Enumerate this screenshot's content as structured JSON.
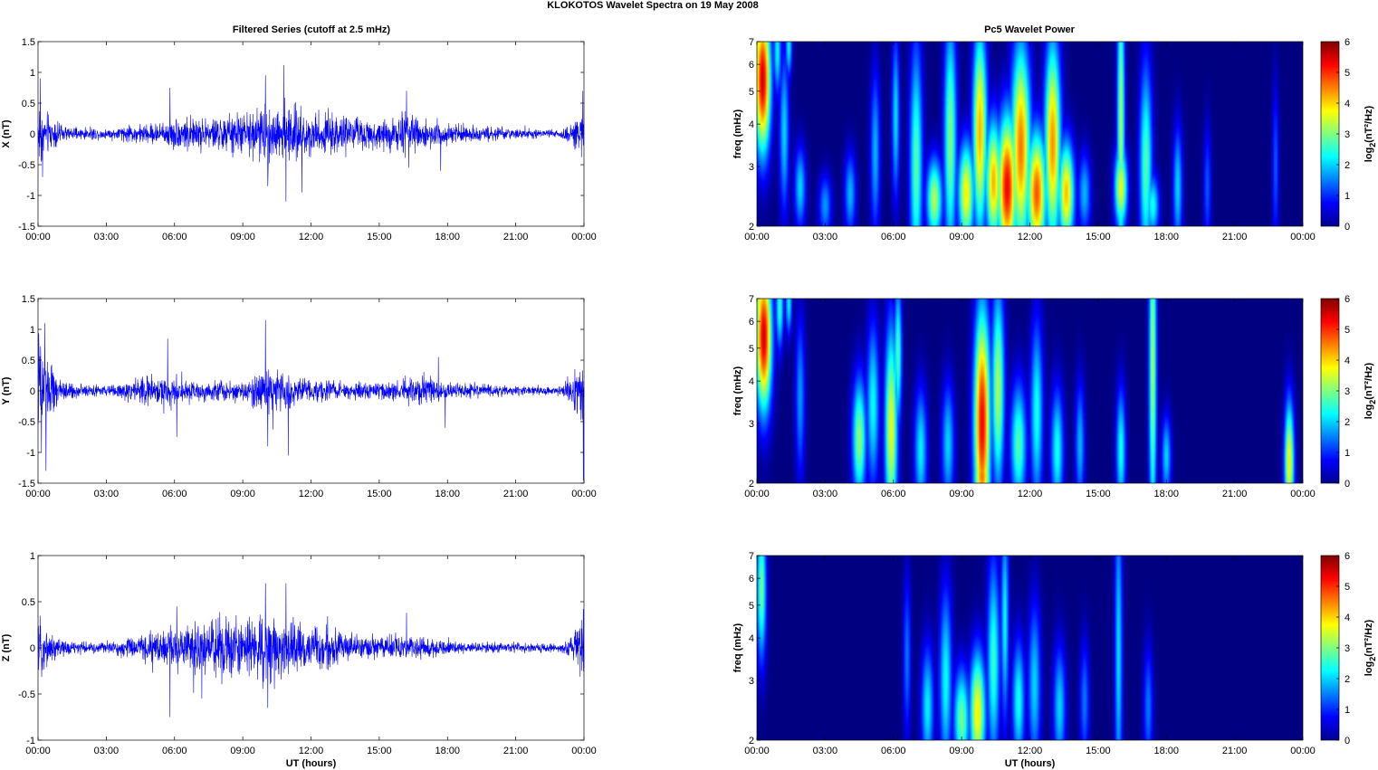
{
  "figure": {
    "suptitle": "KLOKOTOS Wavelet Spectra on 19 May      2008",
    "left_title": "Filtered Series (cutoff at 2.5 mHz)",
    "right_title": "Pc5 Wavelet Power",
    "xlabel": "UT (hours)",
    "colorbar_label": "log2(nT²/Hz)",
    "colormap": "jet",
    "trace_color": "#0000ff",
    "heatmap_background": "#00008f"
  },
  "chart_data": [
    {
      "id": "x-series",
      "type": "line",
      "ylabel": "X (nT)",
      "xlim": [
        0,
        24
      ],
      "ylim": [
        -1.5,
        1.5
      ],
      "yticks": [
        -1.5,
        -1,
        -0.5,
        0,
        0.5,
        1,
        1.5
      ],
      "xtick_labels": [
        "00:00",
        "03:00",
        "06:00",
        "09:00",
        "12:00",
        "15:00",
        "18:00",
        "21:00",
        "00:00"
      ],
      "envelope": {
        "x": [
          0,
          0.3,
          1,
          2,
          3,
          4,
          5,
          6,
          7,
          8,
          9,
          10,
          11,
          12,
          13,
          14,
          15,
          16,
          17,
          18,
          19,
          20,
          21,
          22,
          23,
          24
        ],
        "amplitude": [
          0.6,
          0.35,
          0.12,
          0.08,
          0.08,
          0.12,
          0.15,
          0.22,
          0.25,
          0.25,
          0.3,
          0.45,
          0.4,
          0.3,
          0.3,
          0.25,
          0.22,
          0.3,
          0.22,
          0.15,
          0.12,
          0.1,
          0.08,
          0.07,
          0.06,
          0.3
        ]
      },
      "peaks": [
        {
          "x": 0.1,
          "y": 0.9
        },
        {
          "x": 0.2,
          "y": -0.7
        },
        {
          "x": 5.8,
          "y": 0.75
        },
        {
          "x": 10.0,
          "y": 0.95
        },
        {
          "x": 10.1,
          "y": -0.85
        },
        {
          "x": 10.8,
          "y": 1.12
        },
        {
          "x": 10.9,
          "y": -1.1
        },
        {
          "x": 11.6,
          "y": -0.95
        },
        {
          "x": 16.2,
          "y": 0.7
        },
        {
          "x": 16.3,
          "y": -0.55
        },
        {
          "x": 17.7,
          "y": -0.6
        },
        {
          "x": 23.95,
          "y": 0.7
        }
      ]
    },
    {
      "id": "y-series",
      "type": "line",
      "ylabel": "Y (nT)",
      "xlim": [
        0,
        24
      ],
      "ylim": [
        -1.5,
        1.5
      ],
      "yticks": [
        -1.5,
        -1,
        -0.5,
        0,
        0.5,
        1,
        1.5
      ],
      "xtick_labels": [
        "00:00",
        "03:00",
        "06:00",
        "09:00",
        "12:00",
        "15:00",
        "18:00",
        "21:00",
        "00:00"
      ],
      "envelope": {
        "x": [
          0,
          0.3,
          1,
          2,
          3,
          4,
          5,
          6,
          7,
          8,
          9,
          10,
          11,
          12,
          13,
          14,
          15,
          16,
          17,
          18,
          19,
          20,
          21,
          22,
          23,
          24
        ],
        "amplitude": [
          0.9,
          0.5,
          0.15,
          0.08,
          0.07,
          0.15,
          0.22,
          0.22,
          0.15,
          0.15,
          0.12,
          0.35,
          0.25,
          0.15,
          0.15,
          0.12,
          0.12,
          0.2,
          0.25,
          0.12,
          0.1,
          0.08,
          0.07,
          0.06,
          0.06,
          0.5
        ]
      },
      "peaks": [
        {
          "x": 0.3,
          "y": 1.1
        },
        {
          "x": 0.35,
          "y": -1.3
        },
        {
          "x": 0.15,
          "y": -1.0
        },
        {
          "x": 5.7,
          "y": 0.85
        },
        {
          "x": 6.1,
          "y": -0.75
        },
        {
          "x": 10.0,
          "y": 1.15
        },
        {
          "x": 10.1,
          "y": -0.9
        },
        {
          "x": 11.0,
          "y": -1.05
        },
        {
          "x": 17.6,
          "y": 0.55
        },
        {
          "x": 17.9,
          "y": -0.6
        },
        {
          "x": 23.97,
          "y": -1.45
        }
      ]
    },
    {
      "id": "z-series",
      "type": "line",
      "ylabel": "Z (nT)",
      "xlim": [
        0,
        24
      ],
      "ylim": [
        -1,
        1
      ],
      "yticks": [
        -1,
        -0.5,
        0,
        0.5,
        1
      ],
      "xtick_labels": [
        "00:00",
        "03:00",
        "06:00",
        "09:00",
        "12:00",
        "15:00",
        "18:00",
        "21:00",
        "00:00"
      ],
      "envelope": {
        "x": [
          0,
          0.3,
          1,
          2,
          3,
          4,
          5,
          6,
          7,
          8,
          9,
          10,
          11,
          12,
          13,
          14,
          15,
          16,
          17,
          18,
          19,
          20,
          21,
          22,
          23,
          24
        ],
        "amplitude": [
          0.3,
          0.2,
          0.08,
          0.06,
          0.06,
          0.1,
          0.14,
          0.2,
          0.25,
          0.3,
          0.32,
          0.35,
          0.3,
          0.2,
          0.18,
          0.12,
          0.1,
          0.12,
          0.1,
          0.07,
          0.05,
          0.05,
          0.05,
          0.04,
          0.04,
          0.3
        ]
      },
      "peaks": [
        {
          "x": 5.8,
          "y": -0.75
        },
        {
          "x": 6.1,
          "y": 0.45
        },
        {
          "x": 7.2,
          "y": -0.55
        },
        {
          "x": 10.0,
          "y": 0.7
        },
        {
          "x": 10.1,
          "y": -0.65
        },
        {
          "x": 10.9,
          "y": 0.7
        },
        {
          "x": 16.2,
          "y": 0.38
        },
        {
          "x": 23.97,
          "y": 0.42
        }
      ]
    },
    {
      "id": "x-wavelet",
      "type": "heatmap",
      "ylabel": "freq (mHz)",
      "xlim": [
        0,
        24
      ],
      "ylim": [
        2,
        7
      ],
      "yscale": "log",
      "yticks": [
        2,
        3,
        4,
        5,
        6,
        7
      ],
      "xtick_labels": [
        "00:00",
        "03:00",
        "06:00",
        "09:00",
        "12:00",
        "15:00",
        "18:00",
        "21:00",
        "00:00"
      ],
      "colorbar": {
        "min": 0,
        "max": 6,
        "ticks": [
          0,
          1,
          2,
          3,
          4,
          5,
          6
        ]
      },
      "blobs": [
        {
          "t": 0.25,
          "f": 5.4,
          "v": 6.0,
          "w": 0.25,
          "h": 0.35
        },
        {
          "t": 0.05,
          "f": 6.8,
          "v": 4.0,
          "w": 0.12,
          "h": 0.15
        },
        {
          "t": 0.9,
          "f": 6.5,
          "v": 2.5,
          "w": 0.12,
          "h": 0.2
        },
        {
          "t": 1.4,
          "f": 6.8,
          "v": 2.5,
          "w": 0.1,
          "h": 0.15
        },
        {
          "t": 1.2,
          "f": 3.8,
          "v": 2.2,
          "w": 0.15,
          "h": 0.4
        },
        {
          "t": 1.9,
          "f": 2.6,
          "v": 2.2,
          "w": 0.18,
          "h": 0.2
        },
        {
          "t": 3.0,
          "f": 2.3,
          "v": 1.8,
          "w": 0.2,
          "h": 0.15
        },
        {
          "t": 4.1,
          "f": 2.5,
          "v": 2.0,
          "w": 0.18,
          "h": 0.2
        },
        {
          "t": 5.2,
          "f": 3.3,
          "v": 2.0,
          "w": 0.15,
          "h": 0.4
        },
        {
          "t": 6.1,
          "f": 4.2,
          "v": 2.3,
          "w": 0.12,
          "h": 0.4
        },
        {
          "t": 7.0,
          "f": 3.0,
          "v": 3.0,
          "w": 0.2,
          "h": 0.6
        },
        {
          "t": 7.8,
          "f": 2.4,
          "v": 3.6,
          "w": 0.25,
          "h": 0.2
        },
        {
          "t": 8.5,
          "f": 3.6,
          "v": 3.3,
          "w": 0.2,
          "h": 0.6
        },
        {
          "t": 9.2,
          "f": 2.5,
          "v": 4.2,
          "w": 0.25,
          "h": 0.25
        },
        {
          "t": 9.8,
          "f": 3.8,
          "v": 4.6,
          "w": 0.22,
          "h": 0.5
        },
        {
          "t": 10.4,
          "f": 2.7,
          "v": 4.6,
          "w": 0.25,
          "h": 0.3
        },
        {
          "t": 11.0,
          "f": 2.6,
          "v": 5.8,
          "w": 0.3,
          "h": 0.35
        },
        {
          "t": 11.6,
          "f": 3.4,
          "v": 5.0,
          "w": 0.3,
          "h": 0.5
        },
        {
          "t": 12.3,
          "f": 2.5,
          "v": 5.2,
          "w": 0.3,
          "h": 0.3
        },
        {
          "t": 13.0,
          "f": 3.5,
          "v": 4.8,
          "w": 0.25,
          "h": 0.5
        },
        {
          "t": 13.6,
          "f": 2.5,
          "v": 4.5,
          "w": 0.25,
          "h": 0.25
        },
        {
          "t": 14.4,
          "f": 2.5,
          "v": 2.0,
          "w": 0.2,
          "h": 0.2
        },
        {
          "t": 16.0,
          "f": 4.0,
          "v": 3.5,
          "w": 0.12,
          "h": 0.8
        },
        {
          "t": 16.0,
          "f": 2.6,
          "v": 4.0,
          "w": 0.2,
          "h": 0.2
        },
        {
          "t": 17.1,
          "f": 3.0,
          "v": 3.0,
          "w": 0.2,
          "h": 0.5
        },
        {
          "t": 17.4,
          "f": 2.3,
          "v": 2.6,
          "w": 0.2,
          "h": 0.15
        },
        {
          "t": 18.5,
          "f": 2.6,
          "v": 2.2,
          "w": 0.15,
          "h": 0.3
        },
        {
          "t": 19.8,
          "f": 2.6,
          "v": 1.4,
          "w": 0.12,
          "h": 0.3
        },
        {
          "t": 22.8,
          "f": 3.0,
          "v": 1.4,
          "w": 0.1,
          "h": 0.4
        }
      ]
    },
    {
      "id": "y-wavelet",
      "type": "heatmap",
      "ylabel": "freq (mHz)",
      "xlim": [
        0,
        24
      ],
      "ylim": [
        2,
        7
      ],
      "yscale": "log",
      "yticks": [
        2,
        3,
        4,
        5,
        6,
        7
      ],
      "xtick_labels": [
        "00:00",
        "03:00",
        "06:00",
        "09:00",
        "12:00",
        "15:00",
        "18:00",
        "21:00",
        "00:00"
      ],
      "colorbar": {
        "min": 0,
        "max": 6,
        "ticks": [
          0,
          1,
          2,
          3,
          4,
          5,
          6
        ]
      },
      "blobs": [
        {
          "t": 0.3,
          "f": 5.4,
          "v": 6.0,
          "w": 0.25,
          "h": 0.35
        },
        {
          "t": 0.1,
          "f": 6.8,
          "v": 4.0,
          "w": 0.12,
          "h": 0.15
        },
        {
          "t": 1.0,
          "f": 6.6,
          "v": 2.8,
          "w": 0.12,
          "h": 0.2
        },
        {
          "t": 1.4,
          "f": 6.8,
          "v": 2.5,
          "w": 0.1,
          "h": 0.15
        },
        {
          "t": 1.9,
          "f": 3.6,
          "v": 1.8,
          "w": 0.15,
          "h": 0.4
        },
        {
          "t": 4.5,
          "f": 2.7,
          "v": 3.4,
          "w": 0.22,
          "h": 0.3
        },
        {
          "t": 5.1,
          "f": 3.4,
          "v": 2.5,
          "w": 0.2,
          "h": 0.4
        },
        {
          "t": 5.9,
          "f": 2.9,
          "v": 4.0,
          "w": 0.2,
          "h": 0.5
        },
        {
          "t": 6.2,
          "f": 4.8,
          "v": 3.0,
          "w": 0.12,
          "h": 0.35
        },
        {
          "t": 7.2,
          "f": 2.5,
          "v": 2.4,
          "w": 0.2,
          "h": 0.3
        },
        {
          "t": 8.4,
          "f": 2.6,
          "v": 2.2,
          "w": 0.2,
          "h": 0.3
        },
        {
          "t": 9.9,
          "f": 3.0,
          "v": 5.8,
          "w": 0.25,
          "h": 0.55
        },
        {
          "t": 9.9,
          "f": 2.1,
          "v": 5.0,
          "w": 0.25,
          "h": 0.15
        },
        {
          "t": 10.6,
          "f": 3.8,
          "v": 3.6,
          "w": 0.2,
          "h": 0.5
        },
        {
          "t": 11.5,
          "f": 2.6,
          "v": 3.0,
          "w": 0.25,
          "h": 0.3
        },
        {
          "t": 12.3,
          "f": 3.2,
          "v": 2.6,
          "w": 0.2,
          "h": 0.45
        },
        {
          "t": 13.2,
          "f": 2.5,
          "v": 2.6,
          "w": 0.2,
          "h": 0.3
        },
        {
          "t": 14.2,
          "f": 2.6,
          "v": 2.0,
          "w": 0.15,
          "h": 0.3
        },
        {
          "t": 16.0,
          "f": 2.5,
          "v": 2.6,
          "w": 0.15,
          "h": 0.3
        },
        {
          "t": 17.4,
          "f": 4.5,
          "v": 3.5,
          "w": 0.12,
          "h": 0.9
        },
        {
          "t": 18.0,
          "f": 2.4,
          "v": 2.2,
          "w": 0.15,
          "h": 0.2
        },
        {
          "t": 23.4,
          "f": 2.3,
          "v": 4.2,
          "w": 0.15,
          "h": 0.3
        }
      ]
    },
    {
      "id": "z-wavelet",
      "type": "heatmap",
      "ylabel": "freq (mHz)",
      "xlim": [
        0,
        24
      ],
      "ylim": [
        2,
        7
      ],
      "yscale": "log",
      "yticks": [
        2,
        3,
        4,
        5,
        6,
        7
      ],
      "xtick_labels": [
        "00:00",
        "03:00",
        "06:00",
        "09:00",
        "12:00",
        "15:00",
        "18:00",
        "21:00",
        "00:00"
      ],
      "colorbar": {
        "min": 0,
        "max": 6,
        "ticks": [
          0,
          1,
          2,
          3,
          4,
          5,
          6
        ]
      },
      "blobs": [
        {
          "t": 0.2,
          "f": 5.6,
          "v": 3.2,
          "w": 0.15,
          "h": 0.35
        },
        {
          "t": 6.6,
          "f": 3.5,
          "v": 1.6,
          "w": 0.12,
          "h": 0.4
        },
        {
          "t": 7.5,
          "f": 2.5,
          "v": 2.4,
          "w": 0.2,
          "h": 0.3
        },
        {
          "t": 8.3,
          "f": 3.0,
          "v": 2.5,
          "w": 0.2,
          "h": 0.45
        },
        {
          "t": 9.0,
          "f": 2.3,
          "v": 3.2,
          "w": 0.25,
          "h": 0.25
        },
        {
          "t": 9.7,
          "f": 2.4,
          "v": 4.2,
          "w": 0.25,
          "h": 0.3
        },
        {
          "t": 10.4,
          "f": 3.4,
          "v": 2.8,
          "w": 0.2,
          "h": 0.5
        },
        {
          "t": 10.9,
          "f": 4.5,
          "v": 2.5,
          "w": 0.12,
          "h": 0.5
        },
        {
          "t": 11.5,
          "f": 2.6,
          "v": 2.6,
          "w": 0.2,
          "h": 0.3
        },
        {
          "t": 12.2,
          "f": 2.9,
          "v": 2.2,
          "w": 0.2,
          "h": 0.4
        },
        {
          "t": 13.3,
          "f": 2.5,
          "v": 2.2,
          "w": 0.2,
          "h": 0.3
        },
        {
          "t": 14.4,
          "f": 2.6,
          "v": 1.6,
          "w": 0.15,
          "h": 0.3
        },
        {
          "t": 15.9,
          "f": 3.6,
          "v": 2.3,
          "w": 0.12,
          "h": 0.8
        },
        {
          "t": 17.2,
          "f": 2.5,
          "v": 1.6,
          "w": 0.15,
          "h": 0.3
        }
      ]
    }
  ]
}
